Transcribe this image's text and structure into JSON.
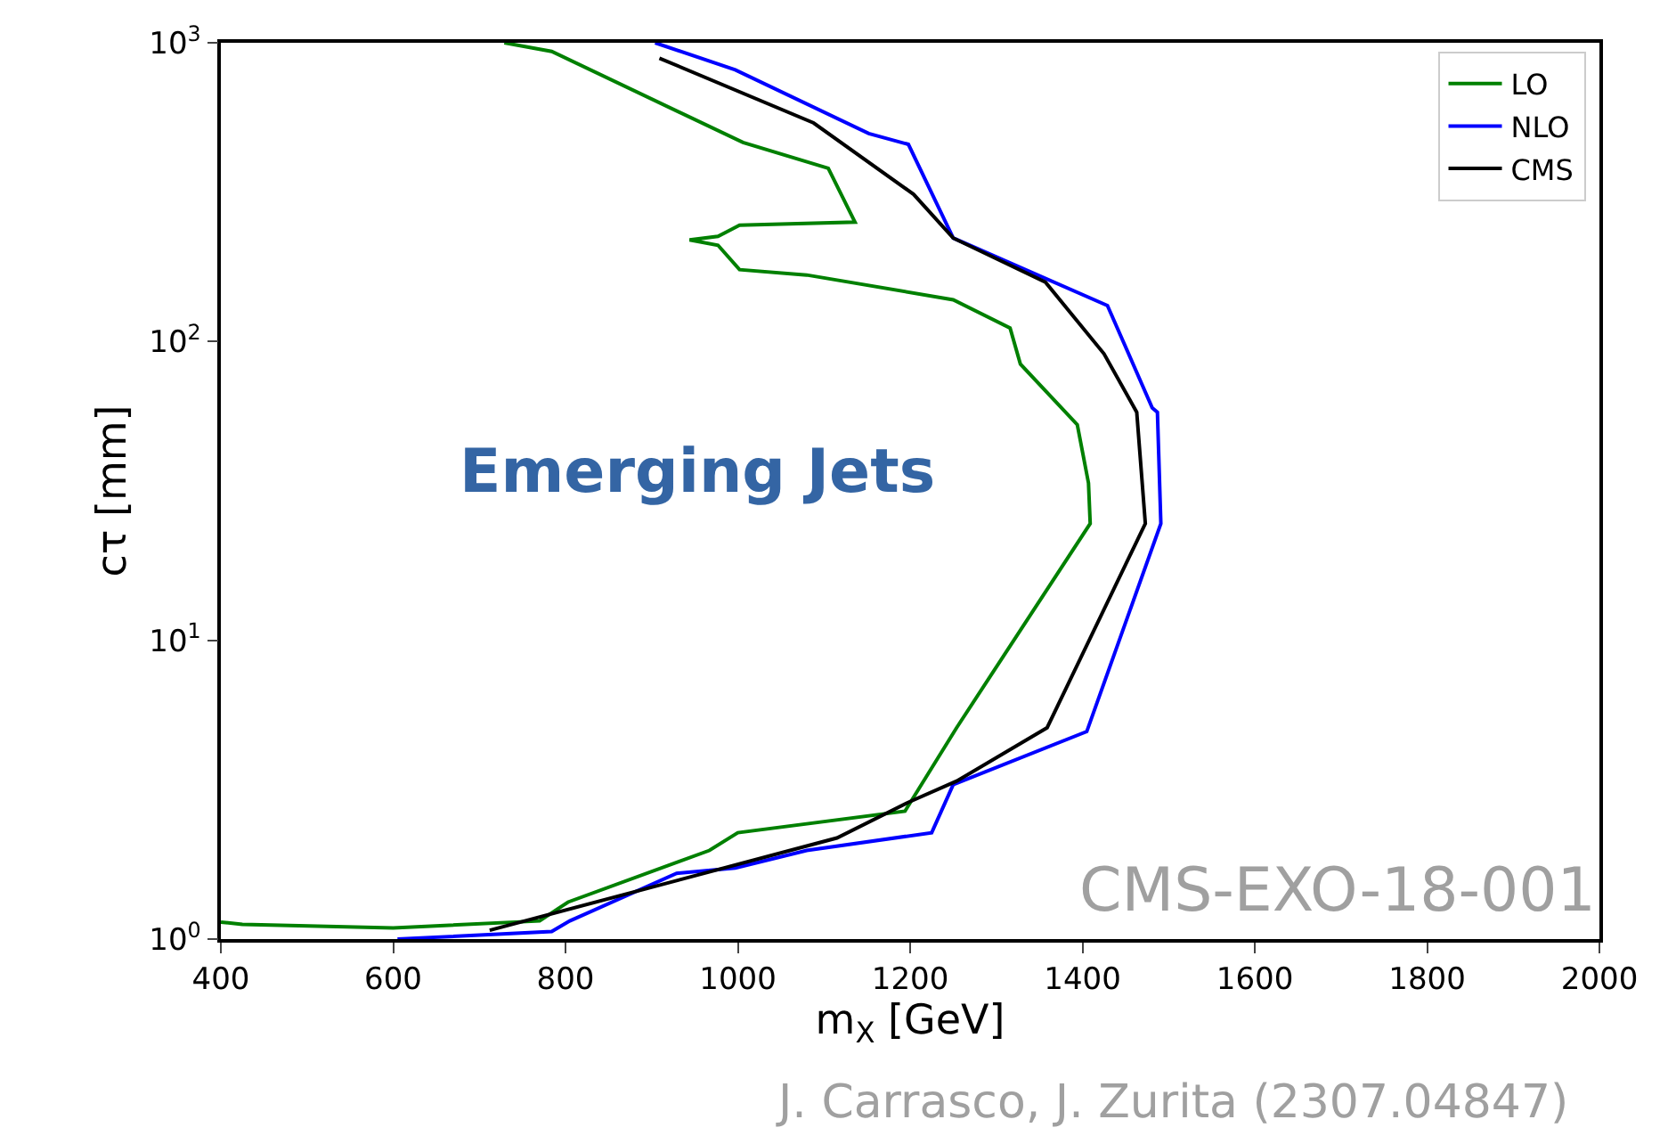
{
  "chart_data": {
    "type": "line",
    "xlabel": "m$_{X}$ [GeV]",
    "ylabel": "cτ [mm]",
    "log": "y",
    "xlim": [
      400,
      2000
    ],
    "xticks": [
      400,
      600,
      800,
      1000,
      1200,
      1400,
      1600,
      1800,
      2000
    ],
    "ylim": [
      1,
      1000
    ],
    "yticks": [
      {
        "value": 1,
        "label": "10$^{0}$"
      },
      {
        "value": 10,
        "label": "10$^{1}$"
      },
      {
        "value": 100,
        "label": "10$^{2}$"
      },
      {
        "value": 1000,
        "label": "10$^{3}$"
      }
    ],
    "legend": "top right",
    "marker": "none",
    "line_style": "solid",
    "annotations": [
      "Emerging Jets",
      "CMS-EXO-18-001",
      "J. Carrasco, J. Zurita (2307.04847)"
    ],
    "series": [
      {
        "name": "LO",
        "color": "#008000",
        "x": [
          400,
          425,
          600,
          770,
          803,
          967,
          1000,
          1194,
          1254,
          1409,
          1407,
          1394,
          1328,
          1316,
          1250,
          1080,
          1002,
          977,
          944,
          977,
          1002,
          1136,
          1105,
          1006,
          784,
          729
        ],
        "values": [
          1.14,
          1.12,
          1.09,
          1.15,
          1.33,
          1.98,
          2.27,
          2.68,
          5.1,
          24.6,
          33.6,
          52.7,
          84,
          111,
          138,
          167,
          174,
          210,
          219,
          225,
          245,
          251,
          380,
          464,
          935,
          1000
        ]
      },
      {
        "name": "NLO",
        "color": "#0000ff",
        "x": [
          605,
          784,
          805,
          929,
          997,
          1080,
          1225,
          1250,
          1405,
          1491,
          1487,
          1481,
          1429,
          1250,
          1198,
          1152,
          997,
          904
        ],
        "values": [
          1.0,
          1.06,
          1.15,
          1.66,
          1.73,
          1.98,
          2.27,
          3.29,
          4.95,
          24.6,
          58,
          60,
          132,
          222,
          457,
          497,
          812,
          1000
        ]
      },
      {
        "name": "CMS",
        "color": "#000000",
        "x": [
          712,
          1115,
          1198,
          1254,
          1359,
          1473,
          1463,
          1425,
          1357,
          1250,
          1204,
          1088,
          909
        ],
        "values": [
          1.07,
          2.18,
          2.87,
          3.38,
          5.1,
          24.6,
          58,
          91,
          158,
          222,
          311,
          539,
          888
        ]
      }
    ]
  }
}
